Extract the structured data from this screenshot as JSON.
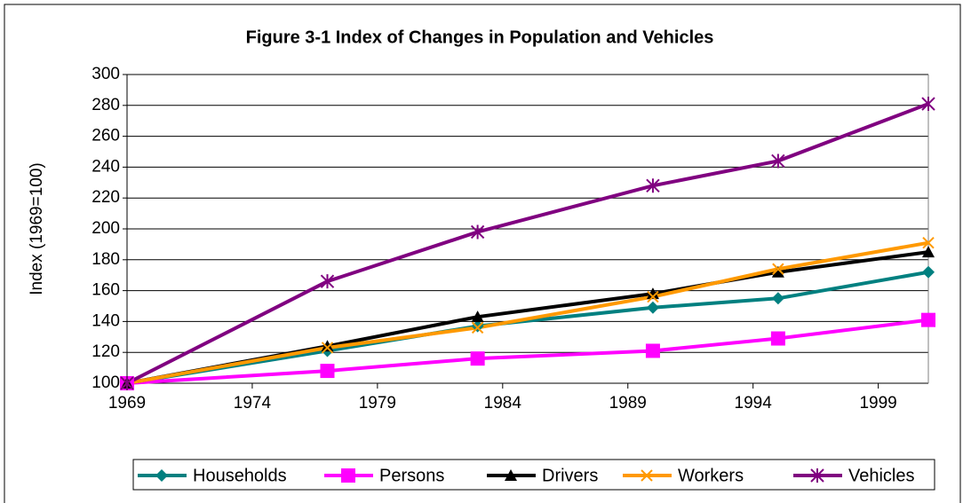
{
  "chart_data": {
    "type": "line",
    "title": "Figure 3-1  Index of Changes in Population and Vehicles",
    "y_label": "Index (1969=100)",
    "x": [
      1969,
      1977,
      1983,
      1990,
      1995,
      2001
    ],
    "series": [
      {
        "name": "Households",
        "color": "#008080",
        "marker": "diamond",
        "values": [
          100,
          121,
          137,
          149,
          155,
          172
        ]
      },
      {
        "name": "Persons",
        "color": "#ff00ff",
        "marker": "square",
        "values": [
          100,
          108,
          116,
          121,
          129,
          141
        ]
      },
      {
        "name": "Drivers",
        "color": "#000000",
        "marker": "triangle",
        "values": [
          100,
          124,
          143,
          158,
          172,
          185
        ]
      },
      {
        "name": "Workers",
        "color": "#ff9900",
        "marker": "x",
        "values": [
          100,
          123,
          136,
          156,
          174,
          191
        ]
      },
      {
        "name": "Vehicles",
        "color": "#800080",
        "marker": "asterisk",
        "values": [
          100,
          166,
          198,
          228,
          244,
          281
        ]
      }
    ],
    "xlim": [
      1969,
      2001
    ],
    "xticks": [
      1969,
      1974,
      1979,
      1984,
      1989,
      1994,
      1999
    ],
    "ylim": [
      100,
      300
    ],
    "yticks": [
      100,
      120,
      140,
      160,
      180,
      200,
      220,
      240,
      260,
      280,
      300
    ],
    "grid": true,
    "legend": "bottom"
  }
}
